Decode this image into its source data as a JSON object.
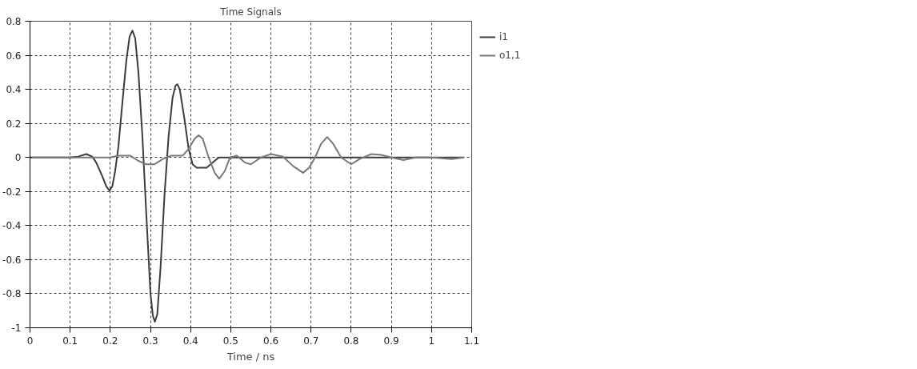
{
  "chart_data": {
    "type": "line",
    "title": "Time Signals",
    "xlabel": "Time / ns",
    "xlim": [
      0,
      1.1
    ],
    "xticks": [
      0,
      0.1,
      0.2,
      0.3,
      0.4,
      0.5,
      0.6,
      0.7,
      0.8,
      0.9,
      1,
      1.1
    ],
    "ylim": [
      -1,
      0.8
    ],
    "yticks": [
      -1,
      -0.8,
      -0.6,
      -0.4,
      -0.2,
      0,
      0.2,
      0.4,
      0.6,
      0.8
    ],
    "grid": true,
    "legend": "top right",
    "marker": "none",
    "line_style": "solid",
    "series": [
      {
        "name": "i1",
        "color": "#3c3c3c",
        "x": [
          0,
          0.1,
          0.12,
          0.14,
          0.155,
          0.165,
          0.18,
          0.19,
          0.198,
          0.205,
          0.212,
          0.22,
          0.23,
          0.24,
          0.248,
          0.255,
          0.262,
          0.27,
          0.28,
          0.29,
          0.3,
          0.306,
          0.311,
          0.317,
          0.325,
          0.335,
          0.345,
          0.355,
          0.362,
          0.367,
          0.373,
          0.385,
          0.395,
          0.405,
          0.415,
          0.44,
          0.455,
          0.47,
          1.08
        ],
        "values": [
          0,
          0,
          0.005,
          0.02,
          0.005,
          -0.03,
          -0.11,
          -0.17,
          -0.195,
          -0.17,
          -0.08,
          0.06,
          0.32,
          0.57,
          0.71,
          0.745,
          0.7,
          0.5,
          0.12,
          -0.35,
          -0.8,
          -0.93,
          -0.965,
          -0.92,
          -0.65,
          -0.22,
          0.12,
          0.35,
          0.42,
          0.43,
          0.4,
          0.22,
          0.05,
          -0.04,
          -0.06,
          -0.06,
          -0.03,
          0,
          0
        ]
      },
      {
        "name": "o1,1",
        "color": "#787878",
        "x": [
          0,
          0.2,
          0.22,
          0.25,
          0.27,
          0.29,
          0.31,
          0.33,
          0.35,
          0.38,
          0.395,
          0.41,
          0.42,
          0.43,
          0.445,
          0.46,
          0.471,
          0.485,
          0.498,
          0.515,
          0.535,
          0.55,
          0.575,
          0.6,
          0.63,
          0.655,
          0.68,
          0.695,
          0.71,
          0.725,
          0.74,
          0.755,
          0.775,
          0.8,
          0.82,
          0.85,
          0.875,
          0.9,
          0.93,
          0.96,
          1.0,
          1.05,
          1.08
        ],
        "values": [
          0,
          0,
          0.01,
          0.01,
          -0.02,
          -0.04,
          -0.04,
          -0.01,
          0.01,
          0.01,
          0.05,
          0.11,
          0.13,
          0.11,
          0.0,
          -0.09,
          -0.125,
          -0.08,
          0,
          0.01,
          -0.03,
          -0.04,
          0,
          0.02,
          0.005,
          -0.05,
          -0.09,
          -0.06,
          0,
          0.08,
          0.12,
          0.08,
          0,
          -0.04,
          -0.01,
          0.02,
          0.015,
          0,
          -0.015,
          0,
          0,
          -0.01,
          0
        ]
      }
    ]
  }
}
